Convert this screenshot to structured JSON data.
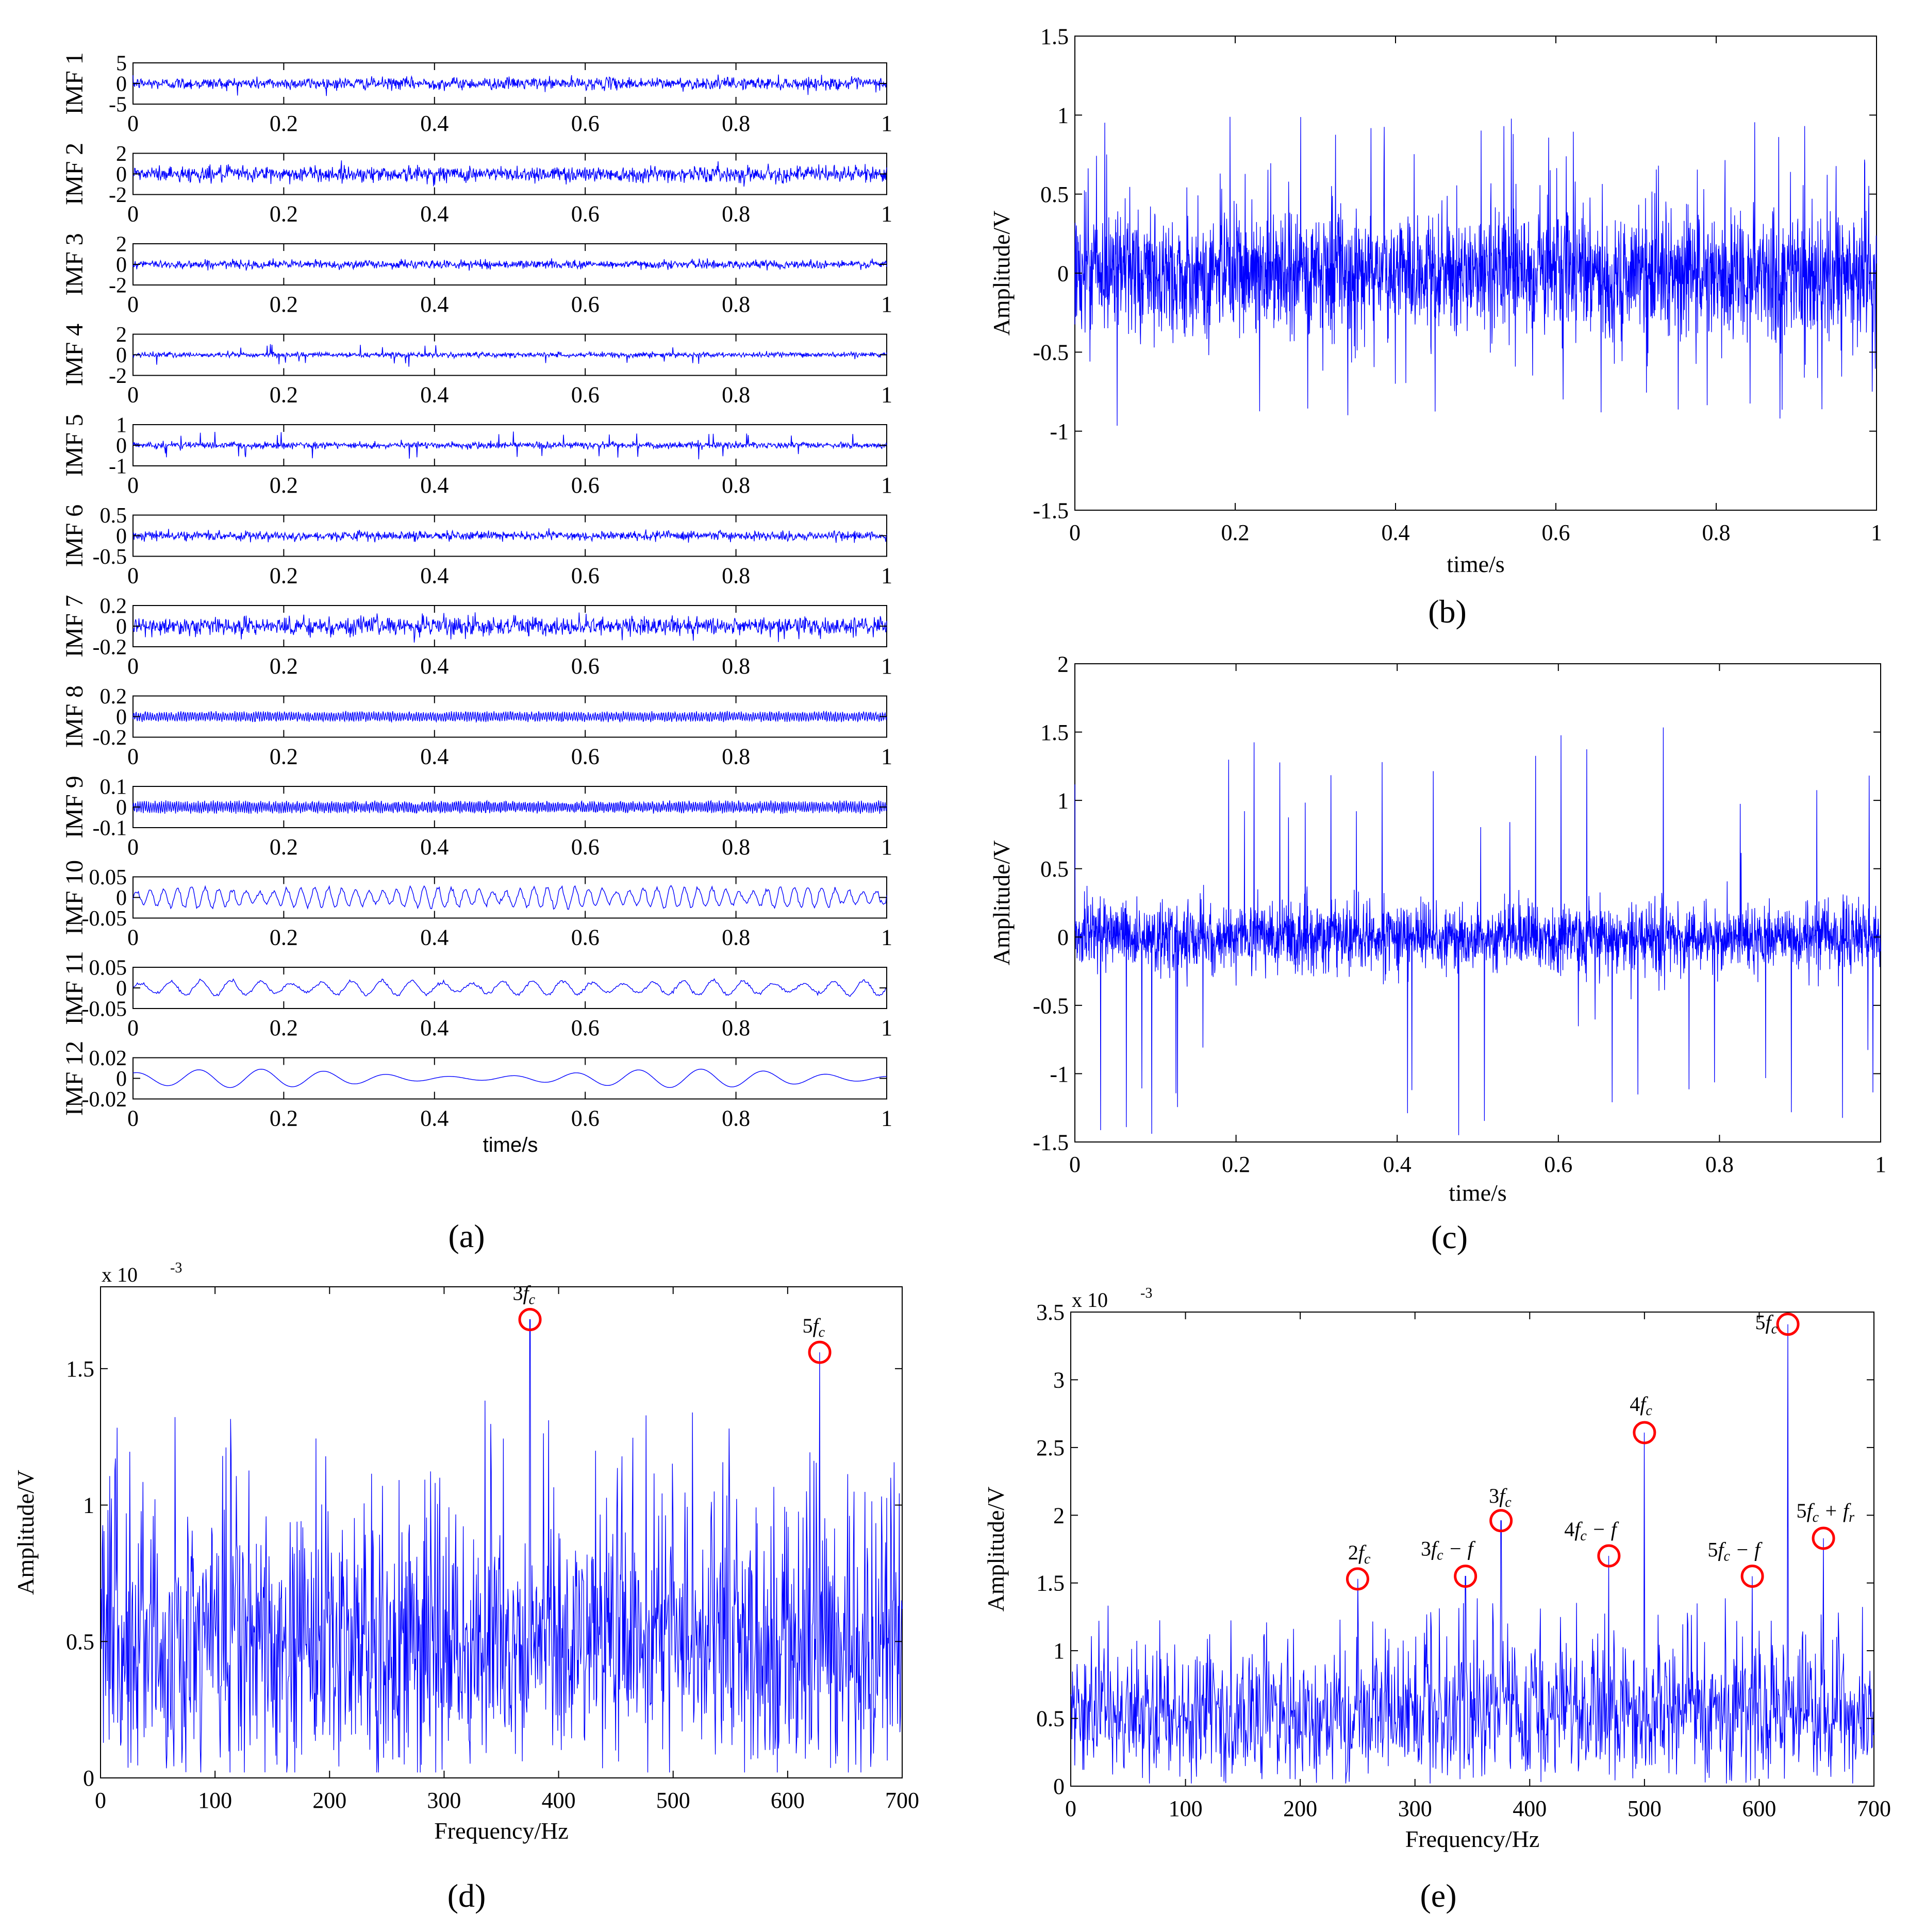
{
  "chart_data": [
    {
      "id": "a",
      "panel_label": "(a)",
      "type": "line",
      "title": "",
      "xlabel": "time/s",
      "xlim": [
        0,
        1
      ],
      "xticks": [
        "0",
        "0.2",
        "0.4",
        "0.6",
        "0.8",
        "1"
      ],
      "series_color": "#0000ff",
      "subplots": [
        {
          "ylabel": "IMF 1",
          "ylim": [
            -5,
            5
          ],
          "yticks": [
            "5",
            "0",
            "-5"
          ],
          "amp": 1.6,
          "style": "noise"
        },
        {
          "ylabel": "IMF 2",
          "ylim": [
            -2,
            2
          ],
          "yticks": [
            "2",
            "0",
            "-2"
          ],
          "amp": 0.85,
          "style": "noise"
        },
        {
          "ylabel": "IMF 3",
          "ylim": [
            -2,
            2
          ],
          "yticks": [
            "2",
            "0",
            "-2"
          ],
          "amp": 0.45,
          "style": "noise"
        },
        {
          "ylabel": "IMF 4",
          "ylim": [
            -2,
            2
          ],
          "yticks": [
            "2",
            "0",
            "-2"
          ],
          "amp": 0.35,
          "style": "spiky"
        },
        {
          "ylabel": "IMF 5",
          "ylim": [
            -1,
            1
          ],
          "yticks": [
            "1",
            "0",
            "-1"
          ],
          "amp": 0.22,
          "style": "spiky"
        },
        {
          "ylabel": "IMF 6",
          "ylim": [
            -0.5,
            0.5
          ],
          "yticks": [
            "0.5",
            "0",
            "-0.5"
          ],
          "amp": 0.12,
          "style": "noise"
        },
        {
          "ylabel": "IMF 7",
          "ylim": [
            -0.2,
            0.2
          ],
          "yticks": [
            "0.2",
            "0",
            "-0.2"
          ],
          "amp": 0.1,
          "style": "noise"
        },
        {
          "ylabel": "IMF 8",
          "ylim": [
            -0.2,
            0.2
          ],
          "yticks": [
            "0.2",
            "0",
            "-0.2"
          ],
          "amp": 0.05,
          "style": "wave"
        },
        {
          "ylabel": "IMF 9",
          "ylim": [
            -0.1,
            0.1
          ],
          "yticks": [
            "0.1",
            "0",
            "-0.1"
          ],
          "amp": 0.03,
          "style": "wave"
        },
        {
          "ylabel": "IMF 10",
          "ylim": [
            -0.05,
            0.05
          ],
          "yticks": [
            "0.05",
            "0",
            "-0.05"
          ],
          "amp": 0.025,
          "style": "slow"
        },
        {
          "ylabel": "IMF 11",
          "ylim": [
            -0.05,
            0.05
          ],
          "yticks": [
            "0.05",
            "0",
            "-0.05"
          ],
          "amp": 0.018,
          "style": "slower"
        },
        {
          "ylabel": "IMF 12",
          "ylim": [
            -0.02,
            0.02
          ],
          "yticks": [
            "0.02",
            "0",
            "-0.02"
          ],
          "amp": 0.009,
          "style": "slowest"
        }
      ]
    },
    {
      "id": "b",
      "panel_label": "(b)",
      "type": "line",
      "xlabel": "time/s",
      "ylabel": "Amplitude/V",
      "xlim": [
        0,
        1
      ],
      "ylim": [
        -1.5,
        1.5
      ],
      "xticks": [
        "0",
        "0.2",
        "0.4",
        "0.6",
        "0.8",
        "1"
      ],
      "yticks": [
        "1.5",
        "1",
        "0.5",
        "0",
        "-0.5",
        "-1",
        "-1.5"
      ],
      "series_color": "#0000ff",
      "noise_amplitude": 0.35,
      "peak_amplitude": 1.0
    },
    {
      "id": "c",
      "panel_label": "(c)",
      "type": "line",
      "xlabel": "time/s",
      "ylabel": "Amplitude/V",
      "xlim": [
        0,
        1
      ],
      "ylim": [
        -1.5,
        2
      ],
      "xticks": [
        "0",
        "0.2",
        "0.4",
        "0.6",
        "0.8",
        "1"
      ],
      "yticks": [
        "2",
        "1.5",
        "1",
        "0.5",
        "0",
        "-0.5",
        "-1",
        "-1.5"
      ],
      "series_color": "#0000ff",
      "noise_amplitude": 0.25,
      "impulse_amplitude": 1.55
    },
    {
      "id": "d",
      "panel_label": "(d)",
      "type": "line",
      "xlabel": "Frequency/Hz",
      "ylabel": "Amplitude/V",
      "exponent_label": "x 10",
      "exponent_power": "-3",
      "xlim": [
        0,
        700
      ],
      "ylim": [
        0,
        1.8
      ],
      "xticks": [
        "0",
        "100",
        "200",
        "300",
        "400",
        "500",
        "600",
        "700"
      ],
      "yticks": [
        "0",
        "0.5",
        "1",
        "1.5"
      ],
      "series_color": "#0000ff",
      "marker_color": "#ff0000",
      "peaks": [
        {
          "x": 375,
          "y": 1.68,
          "label_num": "3",
          "label_f": "f",
          "label_sub": "c",
          "label_tail": ""
        },
        {
          "x": 628,
          "y": 1.56,
          "label_num": "5",
          "label_f": "f",
          "label_sub": "c",
          "label_tail": ""
        }
      ]
    },
    {
      "id": "e",
      "panel_label": "(e)",
      "type": "line",
      "xlabel": "Frequency/Hz",
      "ylabel": "Amplitude/V",
      "exponent_label": "x 10",
      "exponent_power": "-3",
      "xlim": [
        0,
        700
      ],
      "ylim": [
        0,
        3.5
      ],
      "xticks": [
        "0",
        "100",
        "200",
        "300",
        "400",
        "500",
        "600",
        "700"
      ],
      "yticks": [
        "0",
        "0.5",
        "1",
        "1.5",
        "2",
        "2.5",
        "3",
        "3.5"
      ],
      "series_color": "#0000ff",
      "marker_color": "#ff0000",
      "peaks": [
        {
          "x": 250,
          "y": 1.53,
          "label_num": "2",
          "label_f": "f",
          "label_sub": "c",
          "label_tail": ""
        },
        {
          "x": 344,
          "y": 1.55,
          "label_num": "3",
          "label_f": "f",
          "label_sub": "c",
          "label_tail": " − f"
        },
        {
          "x": 375,
          "y": 1.96,
          "label_num": "3",
          "label_f": "f",
          "label_sub": "c",
          "label_tail": ""
        },
        {
          "x": 469,
          "y": 1.7,
          "label_num": "4",
          "label_f": "f",
          "label_sub": "c",
          "label_tail": " − f"
        },
        {
          "x": 500,
          "y": 2.61,
          "label_num": "4",
          "label_f": "f",
          "label_sub": "c",
          "label_tail": ""
        },
        {
          "x": 594,
          "y": 1.55,
          "label_num": "5",
          "label_f": "f",
          "label_sub": "c",
          "label_tail": " − f"
        },
        {
          "x": 625,
          "y": 3.41,
          "label_num": "5",
          "label_f": "f",
          "label_sub": "c",
          "label_tail": ""
        },
        {
          "x": 656,
          "y": 1.83,
          "label_num": "5",
          "label_f": "f",
          "label_sub": "c",
          "label_tail": " + f",
          "label_sub2": "r"
        }
      ]
    }
  ]
}
